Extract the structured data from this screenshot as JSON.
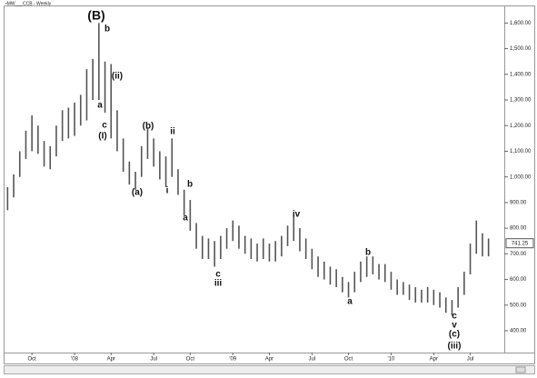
{
  "chart_data": {
    "type": "ohlc",
    "title": "•MW___CCB - Weekly",
    "color": "#555555",
    "categories": [
      null,
      null,
      null,
      null,
      "Oct",
      null,
      null,
      null,
      null,
      null,
      null,
      "'08",
      null,
      null,
      null,
      null,
      null,
      "Apr",
      null,
      null,
      null,
      null,
      null,
      null,
      "Jul",
      null,
      null,
      null,
      null,
      null,
      "Oct",
      null,
      null,
      null,
      null,
      null,
      null,
      "'09",
      null,
      null,
      null,
      null,
      null,
      "Apr",
      null,
      null,
      null,
      null,
      null,
      null,
      "Jul",
      null,
      null,
      null,
      null,
      null,
      "Oct",
      null,
      null,
      null,
      null,
      null,
      null,
      "'10",
      null,
      null,
      null,
      null,
      null,
      null,
      "Apr",
      null,
      null,
      null,
      null,
      null,
      "Jul",
      null,
      null,
      null
    ],
    "high": [
      960,
      1010,
      1100,
      1180,
      1240,
      1200,
      1140,
      1120,
      1200,
      1260,
      1270,
      1290,
      1320,
      1420,
      1460,
      1600,
      1450,
      1440,
      1260,
      1150,
      1060,
      1020,
      1120,
      1190,
      1150,
      1100,
      1080,
      1150,
      1030,
      950,
      910,
      820,
      770,
      760,
      750,
      770,
      800,
      830,
      810,
      770,
      760,
      740,
      760,
      740,
      750,
      770,
      810,
      850,
      800,
      760,
      720,
      690,
      670,
      650,
      640,
      610,
      590,
      630,
      670,
      690,
      690,
      660,
      660,
      630,
      600,
      590,
      580,
      570,
      560,
      570,
      560,
      550,
      530,
      520,
      570,
      630,
      740,
      830,
      780,
      760
    ],
    "low": [
      870,
      920,
      1000,
      1070,
      1100,
      1090,
      1040,
      1030,
      1080,
      1140,
      1150,
      1160,
      1200,
      1220,
      1300,
      1300,
      1250,
      1150,
      1100,
      1020,
      970,
      950,
      1000,
      1070,
      1040,
      990,
      960,
      1000,
      930,
      850,
      790,
      720,
      680,
      680,
      650,
      680,
      720,
      750,
      720,
      700,
      680,
      670,
      680,
      670,
      670,
      690,
      730,
      750,
      710,
      680,
      640,
      610,
      600,
      580,
      570,
      550,
      530,
      550,
      590,
      610,
      620,
      600,
      590,
      560,
      540,
      540,
      520,
      510,
      510,
      510,
      500,
      490,
      470,
      460,
      490,
      540,
      620,
      700,
      690,
      690
    ],
    "ylim": [
      315,
      1665
    ],
    "yticks": [
      {
        "value": 400,
        "label": "400.00"
      },
      {
        "value": 500,
        "label": "500.00"
      },
      {
        "value": 600,
        "label": "600.00"
      },
      {
        "value": 700,
        "label": "700.00"
      },
      {
        "value": 800,
        "label": "800.00"
      },
      {
        "value": 900,
        "label": "900.00"
      },
      {
        "value": 1000,
        "label": "1,000.00"
      },
      {
        "value": 1100,
        "label": "1,100.00"
      },
      {
        "value": 1200,
        "label": "1,200.00"
      },
      {
        "value": 1300,
        "label": "1,300.00"
      },
      {
        "value": 1400,
        "label": "1,400.00"
      },
      {
        "value": 1500,
        "label": "1,500.00"
      },
      {
        "value": 1600,
        "label": "1,600.00"
      }
    ],
    "last_price": 741.25,
    "annotations": [
      "(B)",
      "b",
      "(ii)",
      "a",
      "c",
      "(I)",
      "(b)",
      "ii",
      "(a)",
      "i",
      "b",
      "a",
      "iv",
      "c",
      "iii",
      "b",
      "a",
      "c",
      "v",
      "(c)",
      "(iii)"
    ]
  }
}
